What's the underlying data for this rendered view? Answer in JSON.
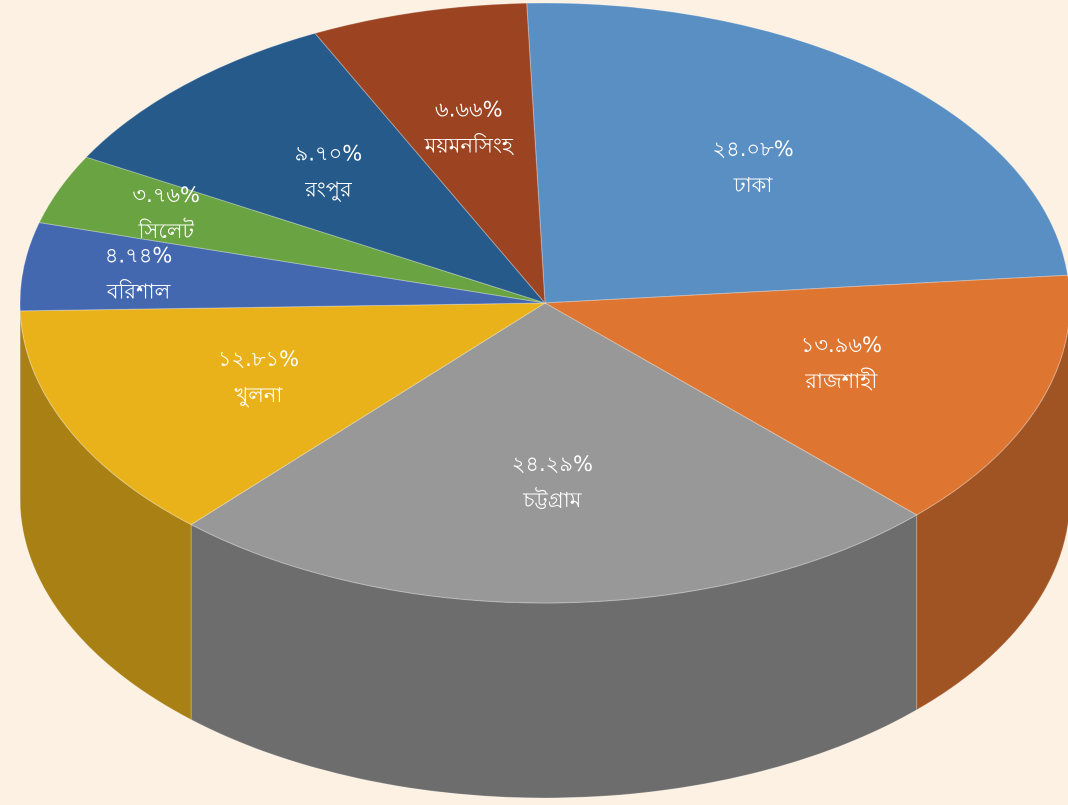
{
  "chart_data": {
    "type": "pie",
    "categories": [
      "ঢাকা",
      "রাজশাহী",
      "চট্টগ্রাম",
      "খুলনা",
      "বরিশাল",
      "সিলেট",
      "রংপুর",
      "ময়মনসিংহ"
    ],
    "values": [
      24.08,
      13.96,
      24.29,
      12.81,
      4.74,
      3.76,
      9.7,
      6.66
    ],
    "value_labels": [
      "২৪.০৮%",
      "১৩.৯৬%",
      "২৪.২৯%",
      "১২.৮১%",
      "৪.৭৪%",
      "৩.৭৬%",
      "৯.৭০%",
      "৬.৬৬%"
    ],
    "colors": [
      "#5a8fc4",
      "#de7530",
      "#989898",
      "#e9b21a",
      "#4468b0",
      "#6aa341",
      "#255a8a",
      "#9c4422"
    ]
  }
}
